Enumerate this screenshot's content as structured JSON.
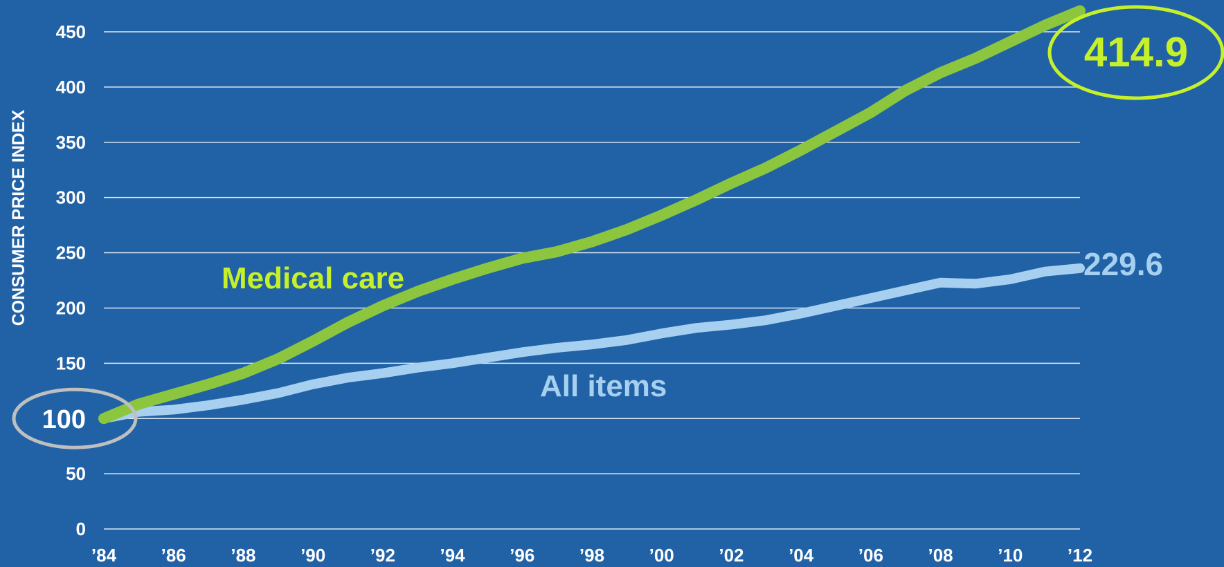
{
  "chart_data": {
    "type": "line",
    "ylabel": "CONSUMER PRICE INDEX",
    "ylim": [
      0,
      450
    ],
    "yticks": [
      0,
      50,
      100,
      150,
      200,
      250,
      300,
      350,
      400,
      450
    ],
    "xlim": [
      1984,
      2012
    ],
    "xticks": [
      {
        "value": 1984,
        "label": "’84"
      },
      {
        "value": 1986,
        "label": "’86"
      },
      {
        "value": 1988,
        "label": "’88"
      },
      {
        "value": 1990,
        "label": "’90"
      },
      {
        "value": 1992,
        "label": "’92"
      },
      {
        "value": 1994,
        "label": "’94"
      },
      {
        "value": 1996,
        "label": "’96"
      },
      {
        "value": 1998,
        "label": "’98"
      },
      {
        "value": 2000,
        "label": "’00"
      },
      {
        "value": 2002,
        "label": "’02"
      },
      {
        "value": 2004,
        "label": "’04"
      },
      {
        "value": 2006,
        "label": "’06"
      },
      {
        "value": 2008,
        "label": "’08"
      },
      {
        "value": 2010,
        "label": "’10"
      },
      {
        "value": 2012,
        "label": "’12"
      }
    ],
    "grid": true,
    "x": [
      1984,
      1985,
      1986,
      1987,
      1988,
      1989,
      1990,
      1991,
      1992,
      1993,
      1994,
      1995,
      1996,
      1997,
      1998,
      1999,
      2000,
      2001,
      2002,
      2003,
      2004,
      2005,
      2006,
      2007,
      2008,
      2009,
      2010,
      2011,
      2012
    ],
    "series": [
      {
        "name": "Medical care",
        "color": "#8cc63f",
        "values": [
          100,
          113,
          122,
          131,
          141,
          154,
          170,
          187,
          202,
          215,
          226,
          236,
          245,
          251,
          260,
          271,
          284,
          298,
          313,
          327,
          343,
          360,
          377,
          397,
          413,
          426,
          441,
          456,
          469
        ]
      },
      {
        "name": "All items",
        "color": "#a7d0f0",
        "values": [
          100,
          106,
          108,
          112,
          117,
          123,
          131,
          137,
          141,
          146,
          150,
          155,
          160,
          164,
          167,
          171,
          177,
          182,
          185,
          189,
          195,
          202,
          209,
          216,
          223,
          222,
          226,
          233,
          236
        ]
      }
    ],
    "annotations": [
      {
        "text": "414.9",
        "series": "Medical care",
        "color": "#c6f02a",
        "circled": true
      },
      {
        "text": "229.6",
        "series": "All items",
        "color": "#a7d0f0",
        "circled": false
      },
      {
        "text": "100",
        "at_y": 100,
        "color": "#ffffff",
        "circled": true,
        "circle_color": "#bfbfbf"
      }
    ]
  }
}
